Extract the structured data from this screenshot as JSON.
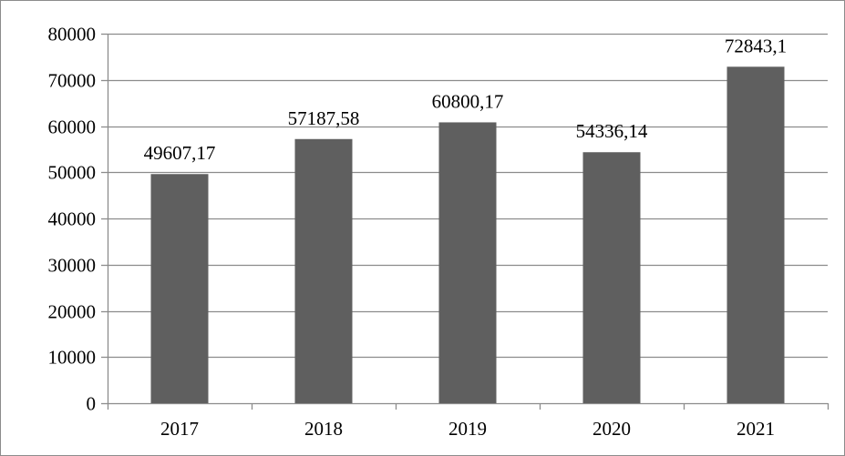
{
  "chart_data": {
    "type": "bar",
    "categories": [
      "2017",
      "2018",
      "2019",
      "2020",
      "2021"
    ],
    "values": [
      49607.17,
      57187.58,
      60800.17,
      54336.14,
      72843.1
    ],
    "data_labels": [
      "49607,17",
      "57187,58",
      "60800,17",
      "54336,14",
      "72843,1"
    ],
    "y_ticks": [
      "0",
      "10000",
      "20000",
      "30000",
      "40000",
      "50000",
      "60000",
      "70000",
      "80000"
    ],
    "ylim": [
      0,
      80000
    ],
    "grid": true,
    "legend": "none",
    "colors": {
      "bar": "#5f5f5f",
      "grid": "#8c8c8c",
      "axis": "#8c8c8c"
    }
  }
}
